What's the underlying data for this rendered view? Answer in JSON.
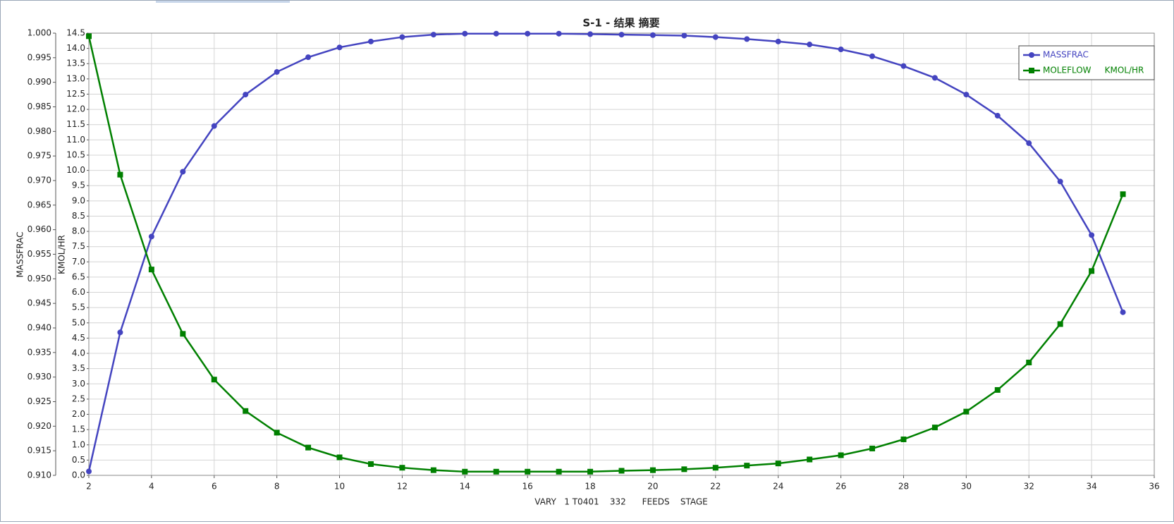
{
  "chart_data": {
    "type": "line",
    "title": "S-1 - 结果 摘要",
    "xlabel": "VARY   1 T0401    332      FEEDS    STAGE",
    "ylabel": "MASSFRAC",
    "y2label": "KMOL/HR",
    "x": [
      2,
      3,
      4,
      5,
      6,
      7,
      8,
      9,
      10,
      11,
      12,
      13,
      14,
      15,
      16,
      17,
      18,
      19,
      20,
      21,
      22,
      23,
      24,
      25,
      26,
      27,
      28,
      29,
      30,
      31,
      32,
      33,
      34,
      35
    ],
    "series": [
      {
        "name": "MASSFRAC",
        "color": "#4444c0",
        "marker": "circle",
        "values": [
          0.9108,
          0.9391,
          0.9586,
          0.9718,
          0.9811,
          0.9875,
          0.9921,
          0.9951,
          0.9971,
          0.9983,
          0.9992,
          0.9997,
          0.9999,
          0.9999,
          0.9999,
          0.9999,
          0.9998,
          0.9997,
          0.9996,
          0.9995,
          0.9992,
          0.9988,
          0.9983,
          0.9977,
          0.9967,
          0.9953,
          0.9933,
          0.9909,
          0.9875,
          0.9832,
          0.9776,
          0.9698,
          0.9589,
          0.9432
        ]
      },
      {
        "name": "MOLEFLOW     KMOL/HR",
        "color": "#008000",
        "marker": "square",
        "axis": "y2",
        "values": [
          14.4,
          9.86,
          6.75,
          4.64,
          3.14,
          2.11,
          1.4,
          0.91,
          0.59,
          0.37,
          0.25,
          0.17,
          0.12,
          0.12,
          0.12,
          0.12,
          0.12,
          0.15,
          0.17,
          0.2,
          0.25,
          0.32,
          0.39,
          0.52,
          0.66,
          0.88,
          1.18,
          1.57,
          2.09,
          2.8,
          3.7,
          4.96,
          6.7,
          9.22
        ]
      }
    ],
    "xlim": [
      2,
      36
    ],
    "xticks": [
      2,
      4,
      6,
      8,
      10,
      12,
      14,
      16,
      18,
      20,
      22,
      24,
      26,
      28,
      30,
      32,
      34,
      36
    ],
    "ylim": [
      0.91,
      1.0
    ],
    "yticks": [
      {
        "value": 0.91,
        "label": "0.910"
      },
      0.915,
      {
        "value": 0.92,
        "label": "0.920"
      },
      0.925,
      {
        "value": 0.93,
        "label": "0.930"
      },
      0.935,
      {
        "value": 0.94,
        "label": "0.940"
      },
      0.945,
      {
        "value": 0.95,
        "label": "0.950"
      },
      0.955,
      {
        "value": 0.96,
        "label": "0.960"
      },
      0.965,
      {
        "value": 0.97,
        "label": "0.970"
      },
      0.975,
      {
        "value": 0.98,
        "label": "0.980"
      },
      0.985,
      {
        "value": 0.99,
        "label": "0.990"
      },
      0.995,
      {
        "value": 1.0,
        "label": "1.000"
      }
    ],
    "y2lim": [
      0,
      14.5
    ],
    "y2ticks": [
      {
        "value": 0,
        "label": "0.0"
      },
      0.5,
      {
        "value": 1,
        "label": "1.0"
      },
      1.5,
      {
        "value": 2,
        "label": "2.0"
      },
      2.5,
      {
        "value": 3,
        "label": "3.0"
      },
      3.5,
      {
        "value": 4,
        "label": "4.0"
      },
      4.5,
      {
        "value": 5,
        "label": "5.0"
      },
      5.5,
      {
        "value": 6,
        "label": "6.0"
      },
      6.5,
      {
        "value": 7,
        "label": "7.0"
      },
      7.5,
      {
        "value": 8,
        "label": "8.0"
      },
      8.5,
      {
        "value": 9,
        "label": "9.0"
      },
      9.5,
      {
        "value": 10,
        "label": "10.0"
      },
      10.5,
      {
        "value": 11,
        "label": "11.0"
      },
      11.5,
      {
        "value": 12,
        "label": "12.0"
      },
      12.5,
      {
        "value": 13,
        "label": "13.0"
      },
      13.5,
      {
        "value": 14,
        "label": "14.0"
      },
      14.5
    ],
    "grid": true,
    "legend": "top-right"
  }
}
